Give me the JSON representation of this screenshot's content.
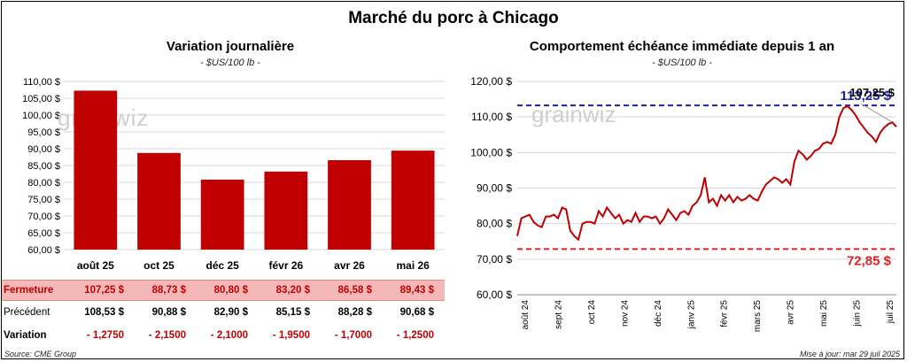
{
  "title": "Marché du porc à Chicago",
  "left_chart": {
    "title": "Variation journalière",
    "subtitle": "- $US/100 lb -"
  },
  "right_chart": {
    "title": "Comportement échéance immédiate depuis 1 an",
    "subtitle": "- $US/100 lb -"
  },
  "chart_data": [
    {
      "type": "bar",
      "title": "Variation journalière",
      "categories": [
        "août 25",
        "oct 25",
        "déc 25",
        "févr 26",
        "avr 26",
        "mai 26"
      ],
      "values": [
        107.25,
        88.73,
        80.8,
        83.2,
        86.58,
        89.43
      ],
      "ylim": [
        60,
        110
      ],
      "yticks": [
        "60,00 $",
        "65,00 $",
        "70,00 $",
        "75,00 $",
        "80,00 $",
        "85,00 $",
        "90,00 $",
        "95,00 $",
        "100,00 $",
        "105,00 $",
        "110,00 $"
      ],
      "color": "#c00000",
      "grid": true
    },
    {
      "type": "line",
      "title": "Comportement échéance immédiate depuis 1 an",
      "ylim": [
        60,
        120
      ],
      "yticks": [
        "60,00 $",
        "70,00 $",
        "80,00 $",
        "90,00 $",
        "100,00 $",
        "110,00 $",
        "120,00 $"
      ],
      "xticks": [
        "août 24",
        "sept 24",
        "oct 24",
        "nov 24",
        "déc 24",
        "janv 25",
        "févr 25",
        "mars 25",
        "avr 25",
        "mai 25",
        "juin 25",
        "juil 25"
      ],
      "series_color": "#c00000",
      "values": [
        76.5,
        81.5,
        82.0,
        82.5,
        80.5,
        79.5,
        79.0,
        82.0,
        82.0,
        82.5,
        81.5,
        84.5,
        84.0,
        78.0,
        76.5,
        75.5,
        80.0,
        80.5,
        80.5,
        80.0,
        83.5,
        82.0,
        84.5,
        83.0,
        81.5,
        82.5,
        80.0,
        81.0,
        80.5,
        83.0,
        80.5,
        82.0,
        82.0,
        81.5,
        82.0,
        80.0,
        81.5,
        84.0,
        82.5,
        81.0,
        83.0,
        83.5,
        82.5,
        85.0,
        86.0,
        88.0,
        93.0,
        86.0,
        87.0,
        85.0,
        88.0,
        86.5,
        88.0,
        86.0,
        87.5,
        86.5,
        87.0,
        88.0,
        87.0,
        86.5,
        89.0,
        91.0,
        92.0,
        93.0,
        92.5,
        91.5,
        92.5,
        91.0,
        97.5,
        100.5,
        99.5,
        98.0,
        99.0,
        100.5,
        101.0,
        102.5,
        103.0,
        102.5,
        105.0,
        110.0,
        112.5,
        113.0,
        112.0,
        110.5,
        108.5,
        107.0,
        105.5,
        104.5,
        103.0,
        105.5,
        107.0,
        108.0,
        108.5,
        107.25
      ],
      "reference_lines": [
        {
          "value": 113.25,
          "label": "113,25 $",
          "color": "#1f1f9e",
          "style": "dashed"
        },
        {
          "value": 72.85,
          "label": "72,85 $",
          "color": "#e02020",
          "style": "dashed"
        }
      ],
      "last_label": "107,25 $",
      "grid": true
    }
  ],
  "table": {
    "rows": [
      {
        "label": "Fermeture",
        "values": [
          "107,25 $",
          "88,73 $",
          "80,80 $",
          "83,20 $",
          "86,58 $",
          "89,43 $"
        ]
      },
      {
        "label": "Précédent",
        "values": [
          "108,53 $",
          "90,88 $",
          "82,90 $",
          "85,15 $",
          "88,28 $",
          "90,68 $"
        ]
      },
      {
        "label": "Variation",
        "values": [
          "- 1,2750",
          "- 2,1500",
          "- 2,1000",
          "- 1,9500",
          "- 1,7000",
          "- 1,2500"
        ]
      }
    ]
  },
  "footer": {
    "source": "Source: CME Group",
    "updated": "Mise à jour: mar 29 juil 2025"
  },
  "watermark": "grainwiz"
}
